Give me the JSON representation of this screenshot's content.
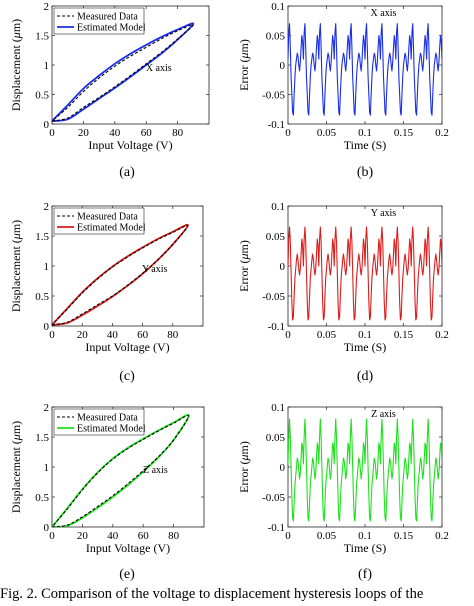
{
  "caption": "Fig. 2.   Comparison of the voltage to displacement hysteresis loops of the",
  "chart_data": [
    {
      "id": "a",
      "type": "line",
      "label": "(a)",
      "annotation": "X axis",
      "xlabel": "Input Voltage (V)",
      "ylabel_pre": "Displacement (",
      "ylabel_mu": "μ",
      "ylabel_post": "m)",
      "xlim": [
        0,
        100
      ],
      "ylim": [
        0,
        2
      ],
      "xticks": [
        0,
        20,
        40,
        60,
        80
      ],
      "yticks": [
        0,
        0.5,
        1,
        1.5,
        2
      ],
      "xtick_labels": [
        "0",
        "20",
        "40",
        "60",
        "80"
      ],
      "ytick_labels": [
        "0",
        "0.5",
        "1",
        "1.5",
        "2"
      ],
      "grid": false,
      "legend": "top-left",
      "series": [
        {
          "name": "Measured Data",
          "color": "#000000",
          "style": "dashed",
          "ascending": [
            [
              0,
              0.05
            ],
            [
              10,
              0.1
            ],
            [
              20,
              0.28
            ],
            [
              30,
              0.45
            ],
            [
              40,
              0.63
            ],
            [
              50,
              0.82
            ],
            [
              60,
              1.02
            ],
            [
              70,
              1.22
            ],
            [
              80,
              1.44
            ],
            [
              90,
              1.68
            ]
          ],
          "descending": [
            [
              90,
              1.68
            ],
            [
              80,
              1.58
            ],
            [
              70,
              1.45
            ],
            [
              60,
              1.3
            ],
            [
              50,
              1.15
            ],
            [
              40,
              0.98
            ],
            [
              30,
              0.78
            ],
            [
              20,
              0.55
            ],
            [
              10,
              0.28
            ],
            [
              0,
              0.05
            ]
          ]
        },
        {
          "name": "Estimated Model",
          "color": "#1a2ee6",
          "style": "solid",
          "ascending": [
            [
              0,
              0.05
            ],
            [
              10,
              0.08
            ],
            [
              20,
              0.25
            ],
            [
              30,
              0.43
            ],
            [
              40,
              0.61
            ],
            [
              50,
              0.8
            ],
            [
              60,
              1.0
            ],
            [
              70,
              1.2
            ],
            [
              80,
              1.43
            ],
            [
              90,
              1.7
            ]
          ],
          "descending": [
            [
              90,
              1.7
            ],
            [
              80,
              1.6
            ],
            [
              70,
              1.48
            ],
            [
              60,
              1.34
            ],
            [
              50,
              1.19
            ],
            [
              40,
              1.02
            ],
            [
              30,
              0.82
            ],
            [
              20,
              0.6
            ],
            [
              10,
              0.32
            ],
            [
              0,
              0.05
            ]
          ]
        }
      ]
    },
    {
      "id": "b",
      "type": "line",
      "label": "(b)",
      "annotation": "X axis",
      "xlabel": "Time (S)",
      "ylabel_pre": "Error (",
      "ylabel_mu": "μ",
      "ylabel_post": "m)",
      "xlim": [
        0,
        0.2
      ],
      "ylim": [
        -0.1,
        0.1
      ],
      "xticks": [
        0,
        0.05,
        0.1,
        0.15,
        0.2
      ],
      "yticks": [
        -0.1,
        -0.05,
        0,
        0.05,
        0.1
      ],
      "xtick_labels": [
        "0",
        "0.05",
        "0.1",
        "0.15",
        "0.2"
      ],
      "ytick_labels": [
        "-0.1",
        "-0.05",
        "0",
        "0.05",
        "0.1"
      ],
      "grid": false,
      "series": [
        {
          "color": "#1a2ee6",
          "period": 0.02,
          "cycles": 10,
          "cycle_values": [
            0.01,
            0.055,
            0.07,
            0.03,
            -0.02,
            -0.05,
            -0.08,
            -0.085,
            -0.05,
            -0.02,
            0.0,
            0.01,
            0.02,
            0.015,
            0.0,
            -0.01,
            0.005,
            0.03,
            0.05,
            0.04,
            0.01
          ]
        }
      ]
    },
    {
      "id": "c",
      "type": "line",
      "label": "(c)",
      "annotation": "Y axis",
      "xlabel": "Input Voltage (V)",
      "ylabel_pre": "Displacement (",
      "ylabel_mu": "μ",
      "ylabel_post": "m)",
      "xlim": [
        0,
        100
      ],
      "ylim": [
        0,
        2
      ],
      "xticks": [
        0,
        20,
        40,
        60,
        80
      ],
      "yticks": [
        0,
        0.5,
        1,
        1.5,
        2
      ],
      "xtick_labels": [
        "0",
        "20",
        "40",
        "60",
        "80"
      ],
      "ytick_labels": [
        "0",
        "0.5",
        "1",
        "1.5",
        "2"
      ],
      "grid": false,
      "legend": "top-left",
      "series": [
        {
          "name": "Measured Data",
          "color": "#000000",
          "style": "dashed",
          "ascending": [
            [
              0,
              0.02
            ],
            [
              10,
              0.06
            ],
            [
              20,
              0.2
            ],
            [
              30,
              0.35
            ],
            [
              40,
              0.5
            ],
            [
              50,
              0.68
            ],
            [
              60,
              0.88
            ],
            [
              70,
              1.1
            ],
            [
              80,
              1.36
            ],
            [
              90,
              1.67
            ]
          ],
          "descending": [
            [
              90,
              1.67
            ],
            [
              80,
              1.56
            ],
            [
              70,
              1.44
            ],
            [
              60,
              1.3
            ],
            [
              50,
              1.15
            ],
            [
              40,
              0.98
            ],
            [
              30,
              0.78
            ],
            [
              20,
              0.55
            ],
            [
              10,
              0.28
            ],
            [
              0,
              0.02
            ]
          ]
        },
        {
          "name": "Estimated Model",
          "color": "#dd1c1c",
          "style": "solid",
          "ascending": [
            [
              0,
              0.02
            ],
            [
              10,
              0.05
            ],
            [
              20,
              0.18
            ],
            [
              30,
              0.33
            ],
            [
              40,
              0.49
            ],
            [
              50,
              0.67
            ],
            [
              60,
              0.87
            ],
            [
              70,
              1.1
            ],
            [
              80,
              1.36
            ],
            [
              90,
              1.68
            ]
          ],
          "descending": [
            [
              90,
              1.68
            ],
            [
              80,
              1.57
            ],
            [
              70,
              1.45
            ],
            [
              60,
              1.31
            ],
            [
              50,
              1.16
            ],
            [
              40,
              0.99
            ],
            [
              30,
              0.79
            ],
            [
              20,
              0.56
            ],
            [
              10,
              0.29
            ],
            [
              0,
              0.02
            ]
          ]
        }
      ]
    },
    {
      "id": "d",
      "type": "line",
      "label": "(d)",
      "annotation": "Y axis",
      "xlabel": "Time (S)",
      "ylabel_pre": "Error (",
      "ylabel_mu": "μ",
      "ylabel_post": "m)",
      "xlim": [
        0,
        0.2
      ],
      "ylim": [
        -0.1,
        0.1
      ],
      "xticks": [
        0,
        0.05,
        0.1,
        0.15,
        0.2
      ],
      "yticks": [
        -0.1,
        -0.05,
        0,
        0.05,
        0.1
      ],
      "xtick_labels": [
        "0",
        "0.05",
        "0.1",
        "0.15",
        "0.2"
      ],
      "ytick_labels": [
        "-0.1",
        "-0.05",
        "0",
        "0.05",
        "0.1"
      ],
      "grid": false,
      "series": [
        {
          "color": "#dd1c1c",
          "period": 0.02,
          "cycles": 10,
          "cycle_values": [
            0.0,
            0.045,
            0.065,
            0.04,
            -0.01,
            -0.06,
            -0.09,
            -0.085,
            -0.05,
            -0.02,
            -0.005,
            0.01,
            0.02,
            0.01,
            -0.005,
            -0.015,
            -0.005,
            0.02,
            0.045,
            0.035,
            0.0
          ]
        }
      ]
    },
    {
      "id": "e",
      "type": "line",
      "label": "(e)",
      "annotation": "Z axis",
      "xlabel": "Input Voltage (V)",
      "ylabel_pre": "Displacement (",
      "ylabel_mu": "μ",
      "ylabel_post": "m)",
      "xlim": [
        0,
        100
      ],
      "ylim": [
        0,
        2
      ],
      "xticks": [
        0,
        20,
        40,
        60,
        80
      ],
      "yticks": [
        0,
        0.5,
        1,
        1.5,
        2
      ],
      "xtick_labels": [
        "0",
        "20",
        "40",
        "60",
        "80"
      ],
      "ytick_labels": [
        "0",
        "0.5",
        "1",
        "1.5",
        "2"
      ],
      "grid": false,
      "legend": "top-left",
      "series": [
        {
          "name": "Measured Data",
          "color": "#000000",
          "style": "dashed",
          "ascending": [
            [
              0,
              0.0
            ],
            [
              10,
              0.03
            ],
            [
              20,
              0.17
            ],
            [
              30,
              0.34
            ],
            [
              40,
              0.52
            ],
            [
              50,
              0.72
            ],
            [
              60,
              0.94
            ],
            [
              70,
              1.17
            ],
            [
              80,
              1.45
            ],
            [
              90,
              1.85
            ]
          ],
          "descending": [
            [
              90,
              1.85
            ],
            [
              80,
              1.73
            ],
            [
              70,
              1.6
            ],
            [
              60,
              1.46
            ],
            [
              50,
              1.31
            ],
            [
              40,
              1.13
            ],
            [
              30,
              0.9
            ],
            [
              20,
              0.62
            ],
            [
              10,
              0.3
            ],
            [
              0,
              0.0
            ]
          ]
        },
        {
          "name": "Estimated Model",
          "color": "#1fe01f",
          "style": "solid",
          "ascending": [
            [
              0,
              0.0
            ],
            [
              10,
              0.02
            ],
            [
              20,
              0.15
            ],
            [
              30,
              0.32
            ],
            [
              40,
              0.5
            ],
            [
              50,
              0.7
            ],
            [
              60,
              0.92
            ],
            [
              70,
              1.16
            ],
            [
              80,
              1.45
            ],
            [
              90,
              1.86
            ]
          ],
          "descending": [
            [
              90,
              1.86
            ],
            [
              80,
              1.74
            ],
            [
              70,
              1.61
            ],
            [
              60,
              1.47
            ],
            [
              50,
              1.32
            ],
            [
              40,
              1.14
            ],
            [
              30,
              0.91
            ],
            [
              20,
              0.63
            ],
            [
              10,
              0.31
            ],
            [
              0,
              0.0
            ]
          ]
        }
      ]
    },
    {
      "id": "f",
      "type": "line",
      "label": "(f)",
      "annotation": "Z axis",
      "xlabel": "Time (S)",
      "ylabel_pre": "Error (",
      "ylabel_mu": "μ",
      "ylabel_post": "m)",
      "xlim": [
        0,
        0.2
      ],
      "ylim": [
        -0.1,
        0.1
      ],
      "xticks": [
        0,
        0.05,
        0.1,
        0.15,
        0.2
      ],
      "yticks": [
        -0.1,
        -0.05,
        0,
        0.05,
        0.1
      ],
      "xtick_labels": [
        "0",
        "0.05",
        "0.1",
        "0.15",
        "0.2"
      ],
      "ytick_labels": [
        "-0.1",
        "-0.05",
        "0",
        "0.05",
        "0.1"
      ],
      "grid": false,
      "series": [
        {
          "color": "#1fe01f",
          "period": 0.02,
          "cycles": 10,
          "cycle_values": [
            0.005,
            0.05,
            0.08,
            0.05,
            0.0,
            -0.05,
            -0.085,
            -0.09,
            -0.06,
            -0.03,
            -0.015,
            0.0,
            0.015,
            0.01,
            -0.005,
            -0.02,
            -0.01,
            0.015,
            0.04,
            0.035,
            0.005
          ]
        }
      ]
    }
  ]
}
